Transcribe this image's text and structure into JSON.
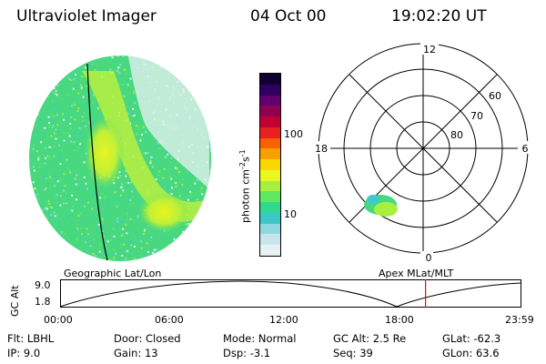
{
  "header": {
    "instrument": "Ultraviolet Imager",
    "date": "04 Oct 00",
    "time": "19:02:20 UT"
  },
  "colorbar": {
    "label_main": "photon cm",
    "label_exp1": "-2",
    "label_mid": "s",
    "label_exp2": "-1",
    "ticks": [
      "100",
      "10"
    ],
    "scale": "log",
    "colors": [
      "#e8f2f4",
      "#c8e6ea",
      "#90d8e0",
      "#3cc8c8",
      "#30d890",
      "#60e860",
      "#a8f040",
      "#e8f820",
      "#f8d800",
      "#f8a000",
      "#f86000",
      "#e82020",
      "#c00030",
      "#900050",
      "#600070",
      "#300060",
      "#100030"
    ]
  },
  "polar": {
    "mlt_labels": [
      "12",
      "18",
      "6",
      "0"
    ],
    "lat_labels": [
      "60",
      "70",
      "80"
    ]
  },
  "map": {
    "title_left": "Geographic Lat/Lon",
    "title_right": "Apex MLat/MLT"
  },
  "altplot": {
    "ylabel": "GC Alt",
    "y_ticks": [
      "9.0",
      "1.8"
    ],
    "x_ticks": [
      "00:00",
      "06:00",
      "12:00",
      "18:00",
      "23:59"
    ],
    "current_time_marker": "19:02",
    "marker_color": "#ff0000"
  },
  "info": {
    "row1": [
      {
        "label": "Flt:",
        "value": "LBHL"
      },
      {
        "label": "Door:",
        "value": "Closed"
      },
      {
        "label": "Mode:",
        "value": "Normal"
      },
      {
        "label": "GC Alt:",
        "value": "2.5 Re"
      },
      {
        "label": "GLat:",
        "value": "-62.3"
      }
    ],
    "row2": [
      {
        "label": "IP:",
        "value": "9.0"
      },
      {
        "label": "Gain:",
        "value": "13"
      },
      {
        "label": "Dsp:",
        "value": "-3.1"
      },
      {
        "label": "Seq:",
        "value": "39"
      },
      {
        "label": "GLon:",
        "value": "63.6"
      }
    ]
  }
}
